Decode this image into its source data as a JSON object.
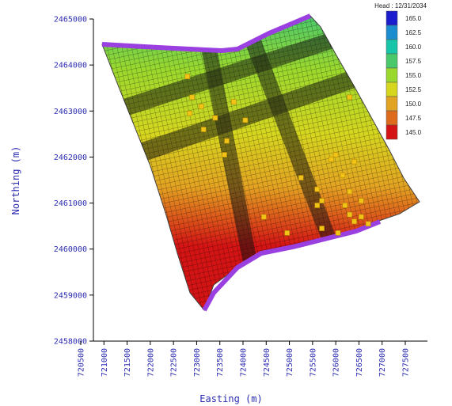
{
  "x_axis": {
    "title": "Easting (m)",
    "ticks": [
      "720500",
      "721000",
      "721500",
      "722000",
      "722500",
      "723000",
      "723500",
      "724000",
      "724500",
      "725000",
      "725500",
      "726000",
      "726500",
      "727000",
      "727500"
    ]
  },
  "y_axis": {
    "title": "Northing (m)",
    "ticks": [
      "2465000",
      "2464000",
      "2463000",
      "2462000",
      "2461000",
      "2460000",
      "2459000",
      "2458000"
    ]
  },
  "legend": {
    "title": "Head : 12/31/2034",
    "items": [
      {
        "label": "165.0",
        "color": "#1c1ccf"
      },
      {
        "label": "162.5",
        "color": "#1a8ccf"
      },
      {
        "label": "160.0",
        "color": "#17c6a8"
      },
      {
        "label": "157.5",
        "color": "#49c96b"
      },
      {
        "label": "155.0",
        "color": "#9ad82e"
      },
      {
        "label": "152.5",
        "color": "#d6d61f"
      },
      {
        "label": "150.0",
        "color": "#e3a322"
      },
      {
        "label": "147.5",
        "color": "#de6a1c"
      },
      {
        "label": "145.0",
        "color": "#d41414"
      }
    ]
  },
  "colors": {
    "boundary": "#9a3fe0",
    "well_marker": "#f2c418",
    "axis_text": "#2b2bb0"
  },
  "wells": [
    [
      722800,
      2463750
    ],
    [
      722900,
      2463300
    ],
    [
      723100,
      2463100
    ],
    [
      722850,
      2462950
    ],
    [
      723150,
      2462600
    ],
    [
      723400,
      2462850
    ],
    [
      723650,
      2462350
    ],
    [
      723600,
      2462050
    ],
    [
      723800,
      2463200
    ],
    [
      724050,
      2462800
    ],
    [
      725250,
      2461550
    ],
    [
      725600,
      2461300
    ],
    [
      725700,
      2461050
    ],
    [
      725600,
      2460950
    ],
    [
      725900,
      2461950
    ],
    [
      726000,
      2462050
    ],
    [
      726400,
      2461900
    ],
    [
      726150,
      2461600
    ],
    [
      726300,
      2461250
    ],
    [
      726550,
      2461050
    ],
    [
      726200,
      2460950
    ],
    [
      726300,
      2460750
    ],
    [
      726400,
      2460600
    ],
    [
      726550,
      2460700
    ],
    [
      724450,
      2460700
    ],
    [
      724950,
      2460350
    ],
    [
      725700,
      2460450
    ],
    [
      726700,
      2460550
    ],
    [
      726050,
      2460350
    ],
    [
      726300,
      2463300
    ]
  ]
}
